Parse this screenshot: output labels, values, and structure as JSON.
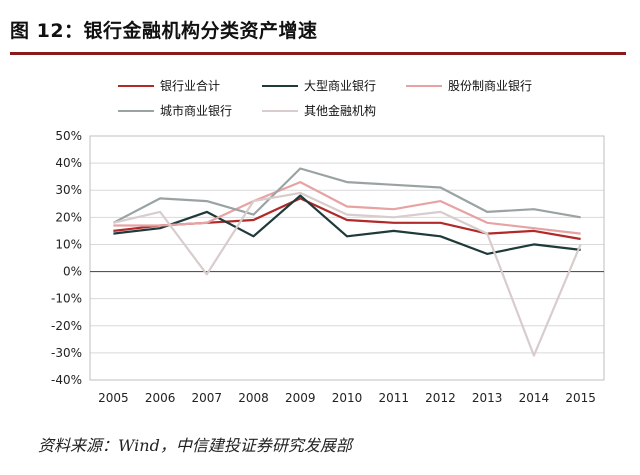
{
  "header": {
    "title": "图 12：银行金融机构分类资产增速"
  },
  "source_note": "资料来源：Wind，中信建投证券研究发展部",
  "chart_data": {
    "type": "line",
    "title": "",
    "xlabel": "",
    "ylabel": "",
    "categories": [
      "2005",
      "2006",
      "2007",
      "2008",
      "2009",
      "2010",
      "2011",
      "2012",
      "2013",
      "2014",
      "2015"
    ],
    "yticks": [
      "50%",
      "40%",
      "30%",
      "20%",
      "10%",
      "0%",
      "-10%",
      "-20%",
      "-30%",
      "-40%"
    ],
    "ylim": [
      -40,
      50
    ],
    "grid": true,
    "legend_position": "top",
    "series": [
      {
        "name": "银行业合计",
        "color": "#b02a2a",
        "values": [
          15,
          17,
          18,
          19,
          27,
          19,
          18,
          18,
          14,
          15,
          12
        ]
      },
      {
        "name": "大型商业银行",
        "color": "#1f3a3a",
        "values": [
          14,
          16,
          22,
          13,
          28,
          13,
          15,
          13,
          6.5,
          10,
          8
        ]
      },
      {
        "name": "股份制商业银行",
        "color": "#e7a3a3",
        "values": [
          17,
          17,
          18,
          26,
          33,
          24,
          23,
          26,
          18,
          16,
          14
        ]
      },
      {
        "name": "城市商业银行",
        "color": "#9aa3a3",
        "values": [
          18,
          27,
          26,
          21,
          38,
          33,
          32,
          31,
          22,
          23,
          20
        ]
      },
      {
        "name": "其他金融机构",
        "color": "#d8cccc",
        "values": [
          18,
          22,
          -1,
          26,
          29,
          21,
          20,
          22,
          14,
          -31,
          10
        ]
      }
    ]
  }
}
